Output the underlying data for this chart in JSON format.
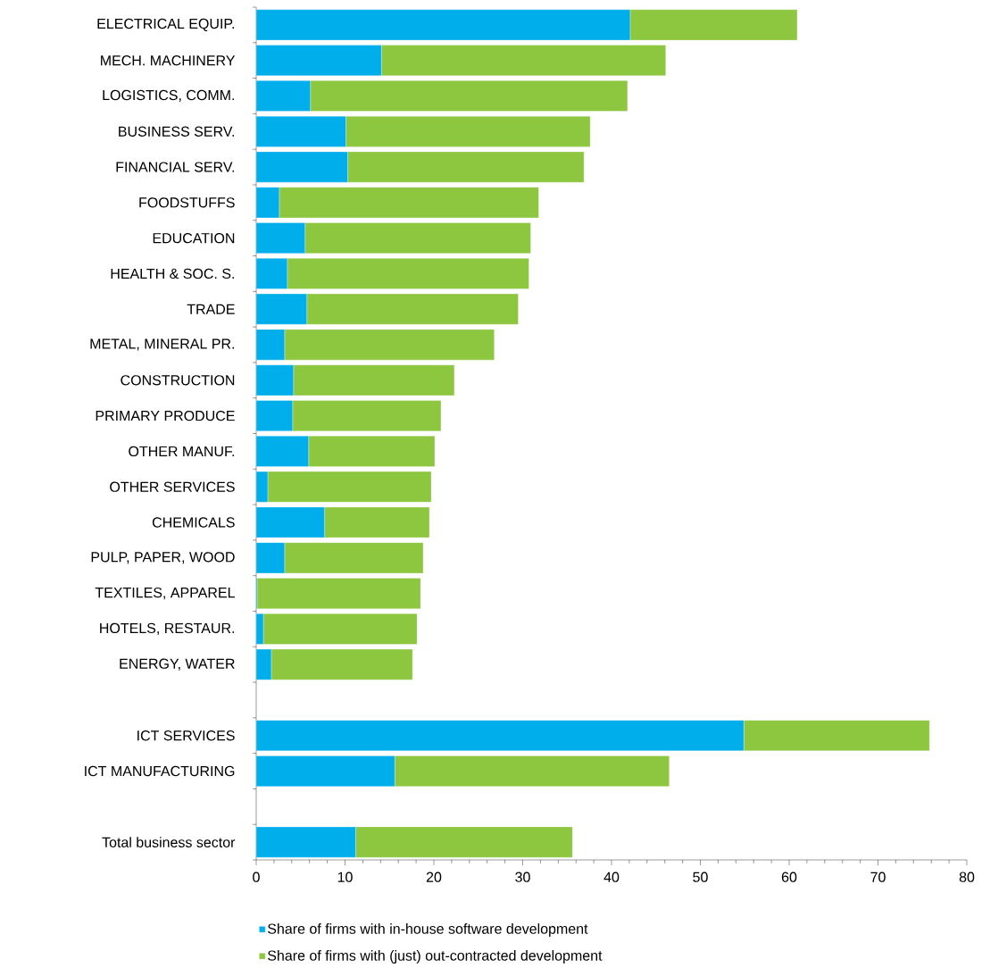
{
  "chart_data": {
    "type": "bar",
    "orientation": "horizontal",
    "stacked": true,
    "categories": [
      "ELECTRICAL EQUIP.",
      "MECH. MACHINERY",
      "LOGISTICS, COMM.",
      "BUSINESS SERV.",
      "FINANCIAL SERV.",
      "FOODSTUFFS",
      "EDUCATION",
      "HEALTH & SOC. S.",
      "TRADE",
      "METAL, MINERAL PR.",
      "CONSTRUCTION",
      "PRIMARY PRODUCE",
      "OTHER MANUF.",
      "OTHER SERVICES",
      "CHEMICALS",
      "PULP, PAPER, WOOD",
      "TEXTILES, APPAREL",
      "HOTELS, RESTAUR.",
      "ENERGY, WATER",
      null,
      "ICT SERVICES",
      "ICT MANUFACTURING",
      null,
      "Total business sector"
    ],
    "series": [
      {
        "name": "Share of firms with in-house software development",
        "color": "#00aeeb",
        "values": [
          42.1,
          14.1,
          6.1,
          10.1,
          10.3,
          2.6,
          5.5,
          3.5,
          5.7,
          3.2,
          4.2,
          4.1,
          5.9,
          1.3,
          7.7,
          3.2,
          0.1,
          0.8,
          1.7,
          null,
          54.9,
          15.6,
          null,
          11.2
        ]
      },
      {
        "name": "Share of firms with (just) out-contracted development",
        "color": "#8dc63f",
        "values": [
          18.8,
          32.0,
          35.7,
          27.5,
          26.6,
          29.2,
          25.4,
          27.2,
          23.8,
          23.6,
          18.1,
          16.7,
          14.2,
          18.4,
          11.8,
          15.6,
          18.4,
          17.3,
          15.9,
          null,
          20.9,
          30.9,
          null,
          24.4
        ]
      }
    ],
    "xlim": [
      0,
      80
    ],
    "xticks": [
      0,
      10,
      20,
      30,
      40,
      50,
      60,
      70,
      80
    ],
    "legend": "bottom"
  }
}
